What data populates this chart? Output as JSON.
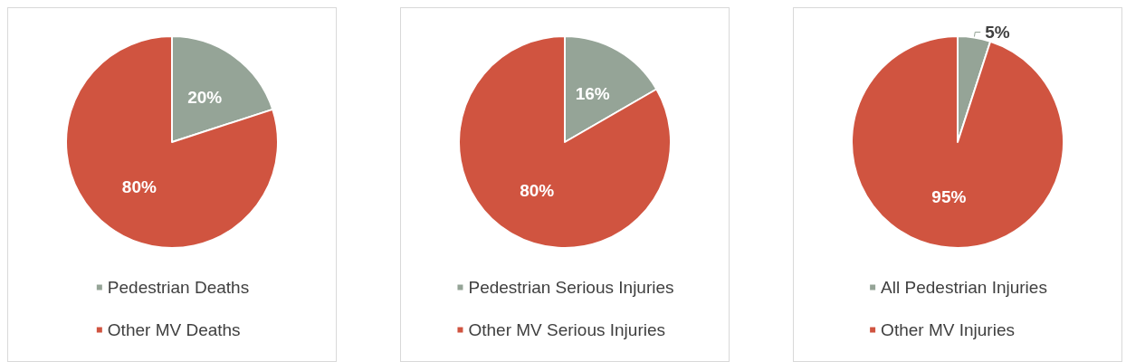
{
  "chart_data": [
    {
      "type": "pie",
      "categories": [
        "Pedestrian Deaths",
        "Other MV Deaths"
      ],
      "values": [
        20,
        80
      ],
      "colors": [
        "#95a497",
        "#d05440"
      ],
      "value_labels": [
        "20%",
        "80%"
      ],
      "legend": "bottom"
    },
    {
      "type": "pie",
      "categories": [
        "Pedestrian Serious Injuries",
        "Other MV Serious Injuries"
      ],
      "values": [
        16,
        80
      ],
      "colors": [
        "#95a497",
        "#d05440"
      ],
      "value_labels": [
        "16%",
        "80%"
      ],
      "legend": "bottom"
    },
    {
      "type": "pie",
      "categories": [
        "All Pedestrian Injuries",
        "Other MV Injuries"
      ],
      "values": [
        5,
        95
      ],
      "colors": [
        "#95a497",
        "#d05440"
      ],
      "value_labels": [
        "5%",
        "95%"
      ],
      "legend": "bottom"
    }
  ]
}
